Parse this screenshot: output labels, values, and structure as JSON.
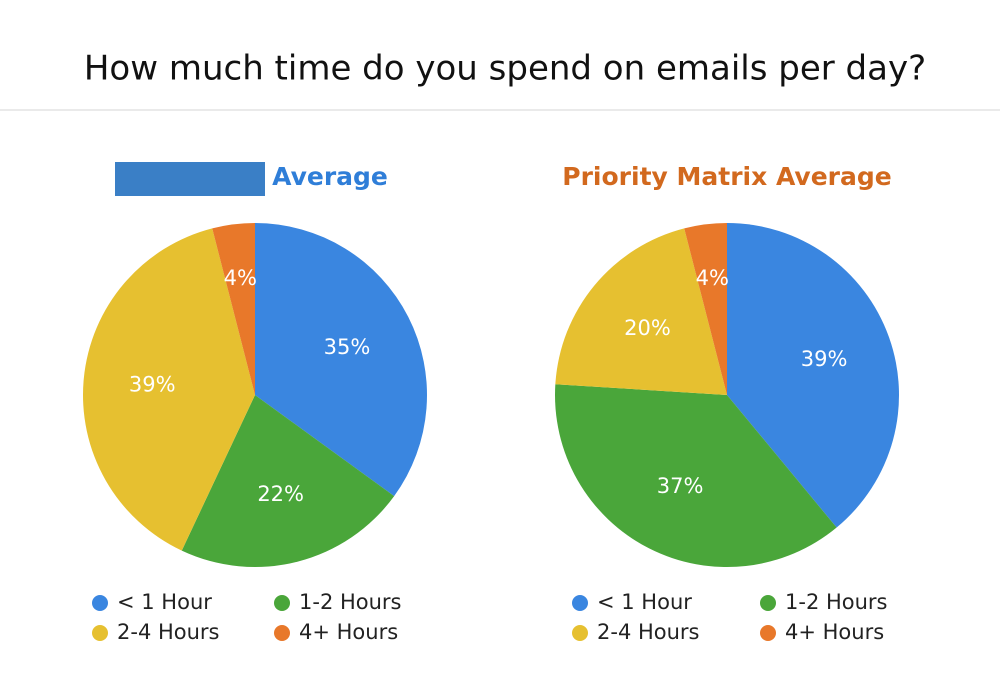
{
  "title": "How much time do you spend on emails per day?",
  "chart_data": [
    {
      "type": "pie",
      "title": "Average",
      "title_color": "#2f7ed8",
      "categories": [
        "< 1 Hour",
        "1-2 Hours",
        "2-4 Hours",
        "4+ Hours"
      ],
      "values": [
        35,
        22,
        39,
        4
      ],
      "value_labels": [
        "35%",
        "22%",
        "39%",
        "4%"
      ],
      "colors": [
        "#3a86e0",
        "#4aa63a",
        "#e6c030",
        "#e8782a"
      ]
    },
    {
      "type": "pie",
      "title": "Priority Matrix Average",
      "title_color": "#d2691e",
      "categories": [
        "< 1 Hour",
        "1-2 Hours",
        "2-4 Hours",
        "4+ Hours"
      ],
      "values": [
        39,
        37,
        20,
        4
      ],
      "value_labels": [
        "39%",
        "37%",
        "20%",
        "4%"
      ],
      "colors": [
        "#3a86e0",
        "#4aa63a",
        "#e6c030",
        "#e8782a"
      ]
    }
  ]
}
